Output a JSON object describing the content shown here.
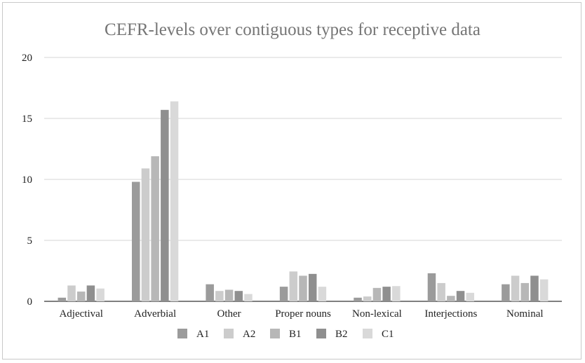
{
  "chart_data": {
    "type": "bar",
    "title": "CEFR-levels over contiguous types for receptive data",
    "xlabel": "",
    "ylabel": "",
    "categories": [
      "Adjectival",
      "Adverbial",
      "Other",
      "Proper nouns",
      "Non-lexical",
      "Interjections",
      "Nominal"
    ],
    "series": [
      {
        "name": "A1",
        "color": "#9b9b9b",
        "values": [
          0.3,
          9.8,
          1.4,
          1.2,
          0.3,
          2.3,
          1.4
        ]
      },
      {
        "name": "A2",
        "color": "#cccccc",
        "values": [
          1.3,
          10.9,
          0.85,
          2.45,
          0.4,
          1.5,
          2.1
        ]
      },
      {
        "name": "B1",
        "color": "#b7b7b7",
        "values": [
          0.8,
          11.9,
          0.95,
          2.1,
          1.1,
          0.45,
          1.5
        ]
      },
      {
        "name": "B2",
        "color": "#8f8f8f",
        "values": [
          1.3,
          15.7,
          0.85,
          2.25,
          1.2,
          0.85,
          2.1
        ]
      },
      {
        "name": "C1",
        "color": "#d9d9d9",
        "values": [
          1.05,
          16.4,
          0.6,
          1.2,
          1.25,
          0.7,
          1.8
        ]
      }
    ],
    "yticks": [
      "0",
      "5",
      "10",
      "15",
      "20"
    ],
    "ylim": [
      0,
      20
    ],
    "grid": true,
    "legend": "bottom"
  }
}
